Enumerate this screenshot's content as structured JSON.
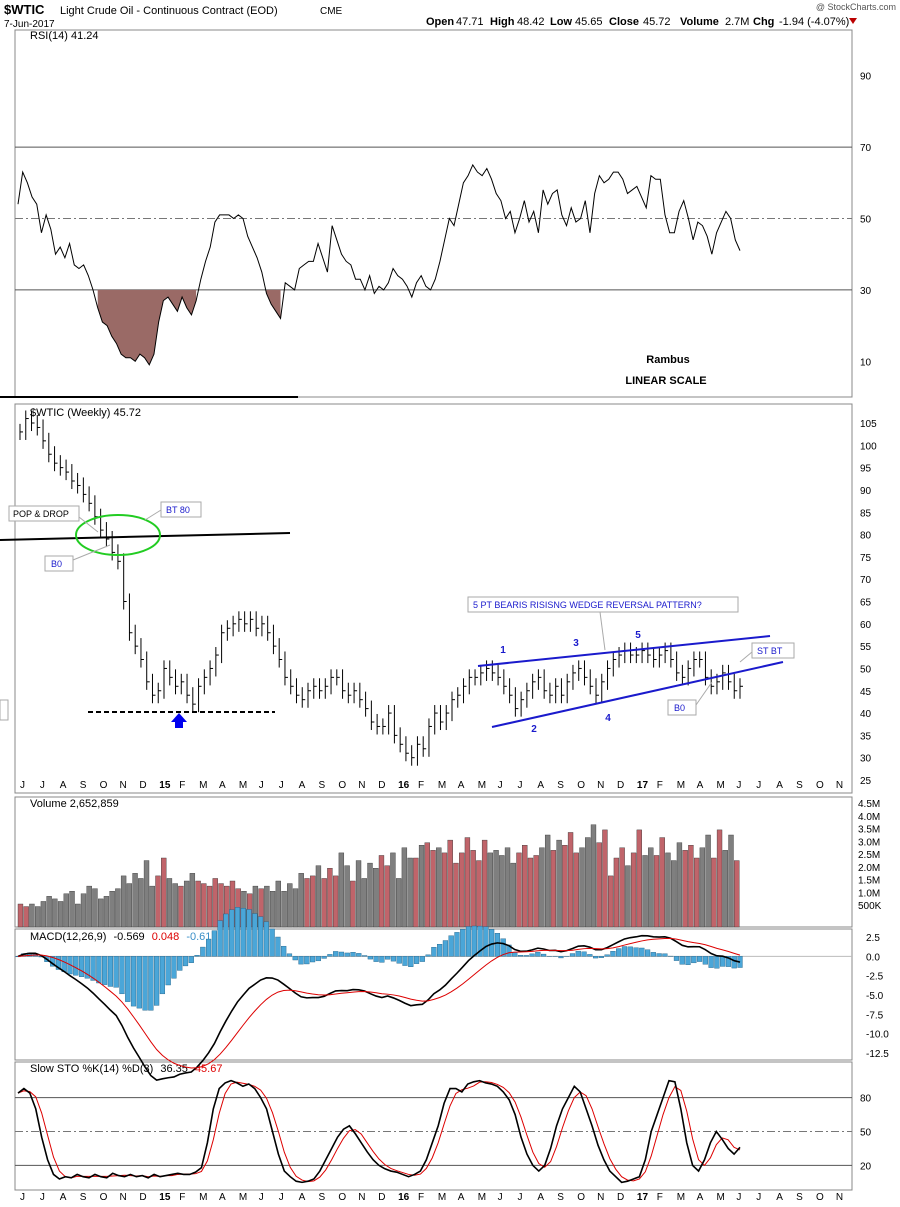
{
  "header": {
    "symbol": "$WTIC",
    "name": "Light Crude Oil - Continuous Contract (EOD)",
    "exchange": "CME",
    "date": "7-Jun-2017",
    "watermark": "@ StockCharts.com",
    "open_label": "Open",
    "open": "47.71",
    "high_label": "High",
    "high": "48.42",
    "low_label": "Low",
    "low": "45.65",
    "close_label": "Close",
    "close": "45.72",
    "volume_label": "Volume",
    "volume": "2.7M",
    "chg_label": "Chg",
    "chg": "-1.94 (-4.07%)"
  },
  "colors": {
    "up": "#c0646a",
    "down": "#7f7f7f",
    "macd_hist": "#4aa6d8",
    "trend": "#1a1acc",
    "circle": "#22cc22",
    "rsi_fill": "#9a6a66"
  },
  "months": [
    "J",
    "J",
    "A",
    "S",
    "O",
    "N",
    "D",
    "15",
    "F",
    "M",
    "A",
    "M",
    "J",
    "J",
    "A",
    "S",
    "O",
    "N",
    "D",
    "16",
    "F",
    "M",
    "A",
    "M",
    "J",
    "J",
    "A",
    "S",
    "O",
    "N",
    "D",
    "17",
    "F",
    "M",
    "A",
    "M",
    "J",
    "J",
    "A",
    "S",
    "O",
    "N"
  ],
  "chart_data": [
    {
      "type": "line",
      "panel": "rsi",
      "title": "RSI(14) 41.24",
      "ylim": [
        0,
        100
      ],
      "yticks": [
        "90",
        "70",
        "50",
        "30",
        "10"
      ],
      "levels": [
        70,
        50,
        30
      ],
      "annotations": [
        "Rambus",
        "LINEAR SCALE"
      ],
      "values": [
        54,
        63,
        60,
        56,
        54,
        46,
        51,
        47,
        40,
        42,
        39,
        43,
        37,
        36,
        37,
        34,
        30,
        25,
        21,
        20,
        17,
        15,
        12,
        11,
        11,
        10,
        12,
        11,
        9,
        12,
        21,
        27,
        28,
        26,
        24,
        28,
        25,
        23,
        27,
        33,
        38,
        42,
        49,
        51,
        51,
        51,
        50,
        51,
        50,
        45,
        42,
        39,
        35,
        29,
        26,
        24,
        22,
        32,
        31,
        30,
        36,
        37,
        38,
        38,
        43,
        39,
        35,
        48,
        44,
        40,
        38,
        37,
        33,
        33,
        30,
        34,
        29,
        31,
        30,
        32,
        36,
        34,
        33,
        31,
        28,
        32,
        34,
        31,
        30,
        33,
        38,
        44,
        50,
        48,
        54,
        60,
        62,
        65,
        63,
        62,
        64,
        61,
        57,
        55,
        50,
        52,
        46,
        50,
        55,
        49,
        52,
        46,
        58,
        54,
        57,
        58,
        51,
        48,
        53,
        49,
        50,
        55,
        46,
        57,
        62,
        60,
        61,
        63,
        63,
        61,
        57,
        58,
        59,
        56,
        53,
        62,
        61,
        61,
        51,
        46,
        46,
        52,
        55,
        50,
        44,
        49,
        48,
        45,
        40,
        46,
        49,
        52,
        50,
        44,
        41
      ]
    },
    {
      "type": "line",
      "panel": "price",
      "title": "$WTIC (Weekly) 45.72",
      "ylim": [
        25,
        107
      ],
      "yticks": [
        "105",
        "100",
        "95",
        "90",
        "85",
        "80",
        "75",
        "70",
        "65",
        "60",
        "55",
        "50",
        "45",
        "40",
        "35",
        "30",
        "25"
      ],
      "close": [
        103,
        106,
        105,
        104,
        101,
        98,
        96,
        95,
        94,
        92,
        91,
        89,
        87,
        84,
        81,
        79,
        76,
        74,
        65,
        58,
        55,
        52,
        47,
        44,
        45,
        50,
        48,
        46,
        47,
        44,
        42,
        46,
        48,
        50,
        53,
        58,
        59,
        60,
        61,
        60,
        61,
        59,
        60,
        58,
        55,
        52,
        48,
        46,
        44,
        43,
        45,
        46,
        45,
        46,
        48,
        48,
        45,
        44,
        45,
        43,
        41,
        38,
        37,
        37,
        40,
        35,
        33,
        31,
        30,
        33,
        32,
        37,
        40,
        38,
        40,
        43,
        44,
        46,
        48,
        48,
        49,
        50,
        49,
        48,
        46,
        44,
        41,
        43,
        45,
        47,
        48,
        45,
        44,
        46,
        44,
        47,
        49,
        50,
        48,
        46,
        44,
        47,
        50,
        52,
        53,
        54,
        53,
        53,
        54,
        53,
        52,
        53,
        54,
        52,
        49,
        48,
        50,
        52,
        52,
        48,
        46,
        47,
        49,
        47,
        45,
        46
      ],
      "annotations": [
        "POP & DROP",
        "BT 80",
        "B0",
        "5 PT BEARIS RISISNG WEDGE REVERSAL PATTERN?",
        "1",
        "2",
        "3",
        "4",
        "5",
        "ST BT",
        "B0"
      ]
    },
    {
      "type": "bar",
      "panel": "volume",
      "title": "Volume 2,652,859",
      "yticks": [
        "4.5M",
        "4.0M",
        "3.5M",
        "3.0M",
        "2.5M",
        "2.0M",
        "1.5M",
        "1.0M",
        "500K"
      ],
      "ylim": [
        0,
        4.5
      ],
      "values_m": [
        0.9,
        0.8,
        0.9,
        0.8,
        1.0,
        1.2,
        1.1,
        1.0,
        1.3,
        1.4,
        0.9,
        1.3,
        1.6,
        1.5,
        1.1,
        1.2,
        1.4,
        1.5,
        2.0,
        1.7,
        2.1,
        1.9,
        2.6,
        1.6,
        2.0,
        2.7,
        1.9,
        1.7,
        1.6,
        1.8,
        2.1,
        1.8,
        1.7,
        1.6,
        1.9,
        1.7,
        1.6,
        1.8,
        1.5,
        1.4,
        1.3,
        1.6,
        1.5,
        1.6,
        1.4,
        1.8,
        1.4,
        1.7,
        1.5,
        2.1,
        1.9,
        2.0,
        2.4,
        1.9,
        2.3,
        2.0,
        2.9,
        2.4,
        1.8,
        2.6,
        1.9,
        2.5,
        2.3,
        2.8,
        2.4,
        2.9,
        1.9,
        3.1,
        2.7,
        2.7,
        3.2,
        3.3,
        3.0,
        3.1,
        2.9,
        3.4,
        2.5,
        2.9,
        3.5,
        3.0,
        2.6,
        3.4,
        2.9,
        3.0,
        2.8,
        3.1,
        2.5,
        2.9,
        3.2,
        2.7,
        2.8,
        3.1,
        3.6,
        3.0,
        3.4,
        3.2,
        3.7,
        2.9,
        3.1,
        3.5,
        4.0,
        3.3,
        3.8,
        2.0,
        2.7,
        3.1,
        2.4,
        2.9,
        3.8,
        2.8,
        3.1,
        2.8,
        3.5,
        2.9,
        2.6,
        3.3,
        3.0,
        3.2,
        2.7,
        3.1,
        3.6,
        2.7,
        3.8,
        3.0,
        3.6,
        2.6
      ]
    },
    {
      "type": "line",
      "panel": "macd",
      "title": "MACD(12,26,9)",
      "macd_value": "-0.569",
      "signal_value": "0.048",
      "hist_value": "-0.617",
      "yticks": [
        "2.5",
        "0.0",
        "-2.5",
        "-5.0",
        "-7.5",
        "-10.0",
        "-12.5"
      ],
      "ylim": [
        -13.5,
        3.5
      ]
    },
    {
      "type": "line",
      "panel": "sto",
      "title": "Slow STO %K(14) %D(3)",
      "k_value": "36.35",
      "d_value": "45.67",
      "yticks": [
        "80",
        "50",
        "20"
      ],
      "levels": [
        80,
        50,
        20
      ],
      "ylim": [
        0,
        100
      ],
      "k": [
        84,
        88,
        84,
        70,
        45,
        25,
        12,
        8,
        10,
        9,
        12,
        10,
        9,
        12,
        10,
        9,
        13,
        11,
        10,
        12,
        10,
        11,
        9,
        12,
        10,
        11,
        12,
        13,
        12,
        12,
        14,
        18,
        40,
        70,
        88,
        93,
        95,
        93,
        90,
        92,
        88,
        80,
        70,
        50,
        30,
        15,
        10,
        6,
        5,
        6,
        8,
        15,
        25,
        35,
        45,
        52,
        55,
        48,
        40,
        32,
        25,
        20,
        17,
        15,
        14,
        12,
        10,
        12,
        15,
        25,
        40,
        55,
        75,
        88,
        88,
        85,
        92,
        94,
        95,
        93,
        92,
        90,
        85,
        78,
        65,
        45,
        30,
        20,
        15,
        20,
        35,
        55,
        70,
        80,
        90,
        85,
        70,
        55,
        38,
        25,
        15,
        10,
        5,
        6,
        8,
        10,
        25,
        50,
        65,
        80,
        95,
        94,
        70,
        40,
        20,
        15,
        25,
        40,
        50,
        43,
        35,
        30,
        36
      ]
    }
  ]
}
